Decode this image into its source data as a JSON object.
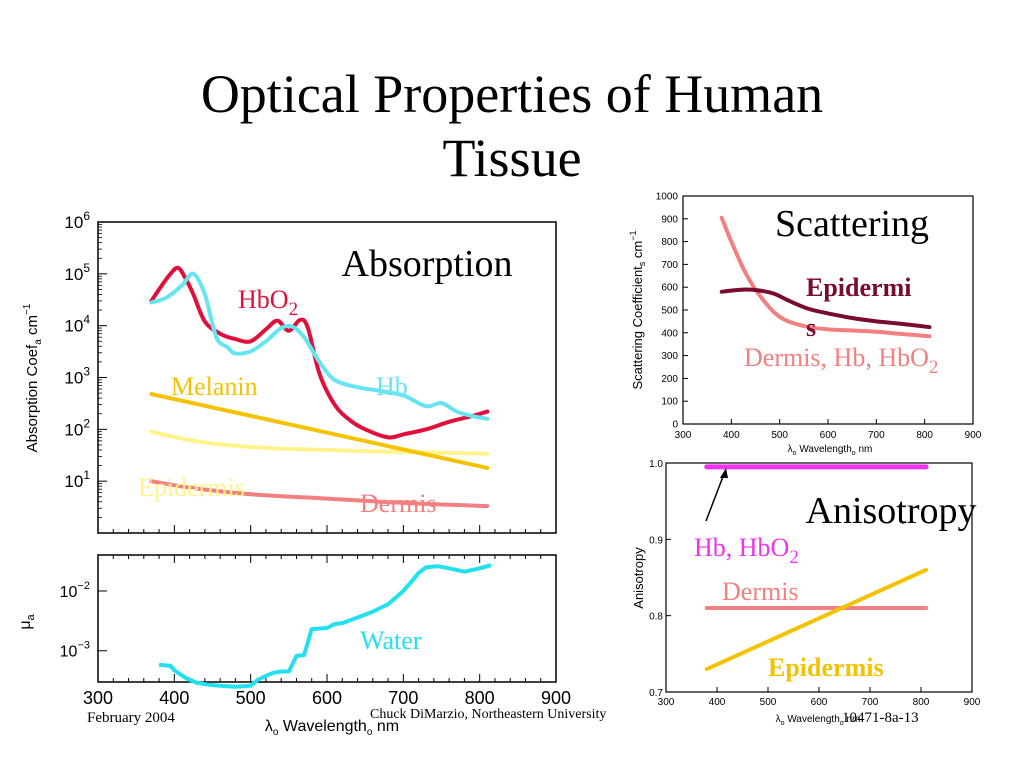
{
  "slide": {
    "title_line1": "Optical Properties of Human",
    "title_line2": "Tissue",
    "footer_date": "February 2004",
    "footer_author": "Chuck DiMarzio, Northeastern University",
    "footer_id": "10471-8a-13"
  },
  "colors": {
    "hbo2": "#e0103a",
    "hb": "#66e4f2",
    "melanin": "#f5c200",
    "epidermis_pale": "#fff38a",
    "dermis": "#f28080",
    "water": "#22e0ee",
    "epidermis_scatter": "#7a0a30",
    "aniso_hb": "#ee33ee",
    "aniso_epi": "#f5c200"
  },
  "chart_data": [
    {
      "type": "line",
      "id": "absorption",
      "title": "Absorption",
      "xlabel": "",
      "ylabel": "Absorption Coef",
      "ylabel_sub": "a",
      "ylabel_unit": "cm",
      "ylabel_exp": "−1",
      "yscale": "log",
      "xlim": [
        300,
        900
      ],
      "ylim": [
        1,
        1000000
      ],
      "ytick_labels": [
        {
          "base": "10",
          "exp": "6",
          "value": 1000000
        },
        {
          "base": "10",
          "exp": "5",
          "value": 100000
        },
        {
          "base": "10",
          "exp": "4",
          "value": 10000
        },
        {
          "base": "10",
          "exp": "3",
          "value": 1000
        },
        {
          "base": "10",
          "exp": "2",
          "value": 100
        },
        {
          "base": "10",
          "exp": "1",
          "value": 10
        }
      ],
      "series": [
        {
          "name": "HbO2",
          "label_main": "HbO",
          "label_sub": "2",
          "color_key": "hbo2",
          "x": [
            370,
            380,
            395,
            405,
            415,
            425,
            440,
            460,
            480,
            500,
            520,
            535,
            550,
            565,
            575,
            590,
            610,
            630,
            650,
            680,
            700,
            730,
            760,
            790,
            810
          ],
          "y": [
            30000,
            50000,
            100000,
            130000,
            80000,
            40000,
            12000,
            7000,
            5500,
            5000,
            8500,
            12500,
            8000,
            13000,
            9000,
            1200,
            300,
            150,
            100,
            70,
            80,
            100,
            140,
            180,
            220
          ]
        },
        {
          "name": "Hb",
          "label_main": "Hb",
          "label_sub": "",
          "color_key": "hb",
          "x": [
            370,
            390,
            410,
            425,
            440,
            455,
            470,
            480,
            500,
            520,
            540,
            555,
            570,
            590,
            610,
            640,
            670,
            700,
            730,
            750,
            770,
            790,
            810
          ],
          "y": [
            28000,
            35000,
            60000,
            100000,
            40000,
            6000,
            3800,
            2900,
            3200,
            5000,
            9000,
            9500,
            6000,
            2000,
            900,
            650,
            550,
            450,
            280,
            320,
            220,
            180,
            160
          ]
        },
        {
          "name": "Melanin",
          "label_main": "Melanin",
          "label_sub": "",
          "color_key": "melanin",
          "x": [
            370,
            810
          ],
          "y": [
            480,
            18
          ]
        },
        {
          "name": "Epidermis",
          "label_main": "Epidermis",
          "label_sub": "",
          "color_key": "epidermis_pale",
          "x": [
            370,
            420,
            480,
            550,
            650,
            810
          ],
          "y": [
            90,
            62,
            48,
            42,
            38,
            34
          ]
        },
        {
          "name": "Dermis",
          "label_main": "Dermis",
          "label_sub": "",
          "color_key": "dermis",
          "x": [
            370,
            420,
            500,
            600,
            700,
            810
          ],
          "y": [
            10,
            7.5,
            5.6,
            4.6,
            3.8,
            3.3
          ]
        }
      ]
    },
    {
      "type": "line",
      "id": "water",
      "xlabel": "Wavelength",
      "xlabel_prefix": "λ",
      "xlabel_sub": "o",
      "xlabel_unit": "nm",
      "ylabel": "μ",
      "ylabel_sub": "a",
      "yscale": "log",
      "xlim": [
        300,
        900
      ],
      "ylim": [
        0.0003,
        0.04
      ],
      "xticks": [
        300,
        400,
        500,
        600,
        700,
        800,
        900
      ],
      "ytick_labels": [
        {
          "base": "10",
          "exp": "−2",
          "value": 0.01
        },
        {
          "base": "10",
          "exp": "−3",
          "value": 0.001
        }
      ],
      "series": [
        {
          "name": "Water",
          "label_main": "Water",
          "label_sub": "",
          "color_key": "water",
          "x": [
            380,
            395,
            400,
            415,
            430,
            445,
            460,
            480,
            500,
            510,
            520,
            530,
            540,
            550,
            560,
            570,
            580,
            600,
            610,
            620,
            640,
            660,
            680,
            700,
            710,
            720,
            730,
            745,
            760,
            780,
            800,
            815
          ],
          "y": [
            0.00058,
            0.00056,
            0.00047,
            0.00035,
            0.00029,
            0.00027,
            0.00026,
            0.00025,
            0.00026,
            0.00033,
            0.00038,
            0.00043,
            0.00045,
            0.00045,
            0.00082,
            0.00085,
            0.0023,
            0.0024,
            0.0028,
            0.0029,
            0.0036,
            0.0045,
            0.006,
            0.01,
            0.014,
            0.02,
            0.025,
            0.026,
            0.024,
            0.021,
            0.024,
            0.027
          ]
        }
      ]
    },
    {
      "type": "line",
      "id": "scattering",
      "title": "Scattering",
      "xlabel": "Wavelength",
      "xlabel_prefix": "λ",
      "xlabel_sub": "o",
      "xlabel_unit": "nm",
      "ylabel": "Scattering Coefficient",
      "ylabel_sub": "s",
      "ylabel_unit": "cm",
      "ylabel_exp": "−1",
      "xlim": [
        300,
        900
      ],
      "ylim": [
        0,
        1000
      ],
      "xticks": [
        300,
        400,
        500,
        600,
        700,
        800,
        900
      ],
      "yticks": [
        0,
        100,
        200,
        300,
        400,
        500,
        600,
        700,
        800,
        900,
        1000
      ],
      "series": [
        {
          "name": "Dermis, Hb, HbO2",
          "label_main": "Dermis, Hb, HbO",
          "label_sub": "2",
          "color_key": "dermis",
          "x": [
            380,
            400,
            430,
            460,
            500,
            550,
            600,
            650,
            700,
            750,
            810
          ],
          "y": [
            905,
            800,
            660,
            560,
            470,
            430,
            415,
            410,
            405,
            395,
            385
          ]
        },
        {
          "name": "Epidermis",
          "label_main": "Epidermi",
          "label_cont": "s",
          "color_key": "epidermis_scatter",
          "x": [
            380,
            400,
            430,
            460,
            490,
            520,
            560,
            600,
            650,
            700,
            750,
            810
          ],
          "y": [
            580,
            585,
            590,
            585,
            570,
            540,
            505,
            485,
            465,
            450,
            440,
            425
          ]
        }
      ]
    },
    {
      "type": "line",
      "id": "anisotropy",
      "title": "Anisotropy",
      "xlabel": "Wavelength",
      "xlabel_prefix": "λ",
      "xlabel_sub": "o",
      "xlabel_unit": "nm",
      "ylabel": "Anisotropy",
      "xlim": [
        300,
        900
      ],
      "ylim": [
        0.7,
        1.0
      ],
      "xticks": [
        300,
        400,
        500,
        600,
        700,
        800,
        900
      ],
      "yticks": [
        0.7,
        0.8,
        0.9,
        1.0
      ],
      "ytick_labels_text": [
        "0.7",
        "0.8",
        "0.9",
        "1.0"
      ],
      "series": [
        {
          "name": "Hb, HbO2",
          "label_main": "Hb, HbO",
          "label_sub": "2",
          "color_key": "aniso_hb",
          "x": [
            380,
            810
          ],
          "y": [
            0.995,
            0.995
          ]
        },
        {
          "name": "Dermis",
          "label_main": "Dermis",
          "label_sub": "",
          "color_key": "dermis",
          "x": [
            380,
            810
          ],
          "y": [
            0.81,
            0.81
          ]
        },
        {
          "name": "Epidermis",
          "label_main": "Epidermis",
          "label_sub": "",
          "color_key": "aniso_epi",
          "x": [
            380,
            810
          ],
          "y": [
            0.73,
            0.86
          ]
        }
      ]
    }
  ]
}
